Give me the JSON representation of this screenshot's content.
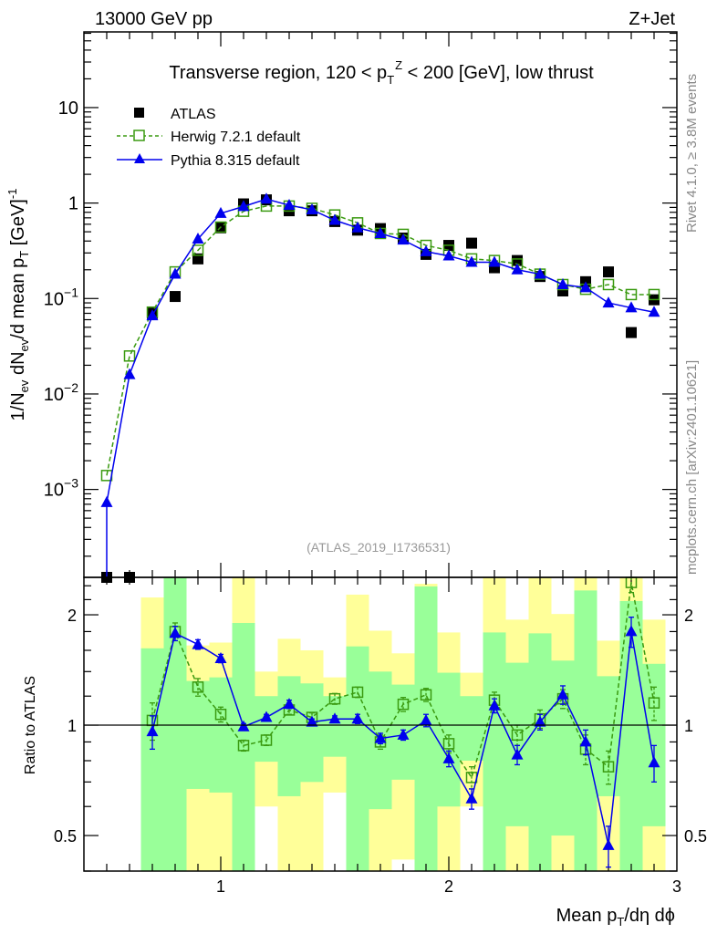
{
  "header": {
    "left": "13000 GeV pp",
    "right": "Z+Jet"
  },
  "side_labels": {
    "rivet": "Rivet 4.1.0, ≥ 3.8M events",
    "mcplots": "mcplots.cern.ch [arXiv:2401.10621]"
  },
  "watermark": "(ATLAS_2019_I1736531)",
  "chart_data": [
    {
      "type": "scatter",
      "title": {
        "pre": "Transverse region, 120 < p",
        "sub": "T",
        "sup": "Z",
        "post": " < 200 [GeV], low thrust"
      },
      "xlabel": {
        "pre": "Mean p",
        "sub": "T",
        "post": "/dη dϕ"
      },
      "ylabel": {
        "a": "1/N",
        "a_sub": "ev",
        "b": " dN",
        "b_sub": "ev",
        "c": "/d mean p",
        "c_sub": "T",
        "d": " [GeV]",
        "d_sup": "-1"
      },
      "xlim": [
        0.4,
        3.0
      ],
      "ylim": [
        0.00012,
        62
      ],
      "yscale": "log",
      "xticks": [
        {
          "v": 1,
          "label": "1"
        },
        {
          "v": 2,
          "label": "2"
        },
        {
          "v": 3,
          "label": "3"
        }
      ],
      "yticks": [
        {
          "v": 10,
          "label": "10"
        },
        {
          "v": 1,
          "label": "1"
        },
        {
          "v": 0.1,
          "label": "10",
          "sup": "−1"
        },
        {
          "v": 0.01,
          "label": "10",
          "sup": "−2"
        },
        {
          "v": 0.001,
          "label": "10",
          "sup": "−3"
        }
      ],
      "legend_position": "top-left",
      "x": [
        0.5,
        0.6,
        0.7,
        0.8,
        0.9,
        1.0,
        1.1,
        1.2,
        1.3,
        1.4,
        1.5,
        1.6,
        1.7,
        1.8,
        1.9,
        2.0,
        2.1,
        2.2,
        2.3,
        2.4,
        2.5,
        2.6,
        2.7,
        2.8,
        2.9
      ],
      "series": [
        {
          "name": "ATLAS",
          "color": "#000000",
          "marker": "square-filled",
          "values": [
            0.0001,
            0.0001,
            0.07,
            0.105,
            0.26,
            0.55,
            0.98,
            1.08,
            0.83,
            0.83,
            0.64,
            0.52,
            0.54,
            0.43,
            0.29,
            0.36,
            0.38,
            0.21,
            0.25,
            0.17,
            0.12,
            0.15,
            0.19,
            0.044,
            0.097
          ]
        },
        {
          "name": "Herwig 7.2.1 default",
          "color": "#3a9a10",
          "marker": "square-open",
          "line": "dashed",
          "values": [
            0.0014,
            0.025,
            0.072,
            0.19,
            0.32,
            0.56,
            0.82,
            0.93,
            0.93,
            0.88,
            0.75,
            0.62,
            0.48,
            0.47,
            0.36,
            0.32,
            0.26,
            0.25,
            0.23,
            0.18,
            0.14,
            0.125,
            0.14,
            0.11,
            0.11
          ]
        },
        {
          "name": "Pythia 8.315 default",
          "color": "#0000ee",
          "marker": "triangle-filled",
          "line": "solid",
          "values": [
            0.00073,
            0.016,
            0.066,
            0.18,
            0.42,
            0.78,
            0.92,
            1.1,
            0.95,
            0.85,
            0.66,
            0.55,
            0.48,
            0.41,
            0.31,
            0.28,
            0.24,
            0.24,
            0.2,
            0.18,
            0.14,
            0.13,
            0.09,
            0.08,
            0.072
          ]
        }
      ]
    },
    {
      "type": "scatter",
      "ylabel": "Ratio to ATLAS",
      "yscale": "log",
      "ylim": [
        0.4,
        2.53
      ],
      "yticks": [
        {
          "v": 2,
          "label": "2"
        },
        {
          "v": 1,
          "label": "1"
        },
        {
          "v": 0.5,
          "label": "0.5"
        }
      ],
      "x": [
        0.7,
        0.8,
        0.9,
        1.0,
        1.1,
        1.2,
        1.3,
        1.4,
        1.5,
        1.6,
        1.7,
        1.8,
        1.9,
        2.0,
        2.1,
        2.2,
        2.3,
        2.4,
        2.5,
        2.6,
        2.7,
        2.8,
        2.9
      ],
      "bands": {
        "green_color": "#99ff99",
        "yellow_color": "#ffff99",
        "green": [
          [
            0.3,
            1.62
          ],
          [
            0.3,
            3
          ],
          [
            0.67,
            1.32
          ],
          [
            0.655,
            1.35
          ],
          [
            0.3,
            1.9
          ],
          [
            0.795,
            1.2
          ],
          [
            0.64,
            1.36
          ],
          [
            0.7,
            1.3
          ],
          [
            0.82,
            1.2
          ],
          [
            0.3,
            1.64
          ],
          [
            0.59,
            1.4
          ],
          [
            0.71,
            1.29
          ],
          [
            0.3,
            2.39
          ],
          [
            0.6,
            1.39
          ],
          [
            0.8,
            1.2
          ],
          [
            0.3,
            1.79
          ],
          [
            0.53,
            1.48
          ],
          [
            0.3,
            1.78
          ],
          [
            0.5,
            1.5
          ],
          [
            0.3,
            2.33
          ],
          [
            0.64,
            1.36
          ],
          [
            0.3,
            2.18
          ],
          [
            0.53,
            1.47
          ]
        ],
        "yellow": [
          [
            0.3,
            2.23
          ],
          [
            0.3,
            3
          ],
          [
            0.3,
            1.65
          ],
          [
            0.3,
            1.68
          ],
          [
            0.3,
            3
          ],
          [
            0.6,
            1.4
          ],
          [
            0.3,
            1.72
          ],
          [
            0.3,
            1.6
          ],
          [
            0.655,
            1.35
          ],
          [
            0.3,
            2.27
          ],
          [
            0.3,
            1.81
          ],
          [
            0.43,
            1.57
          ],
          [
            0.3,
            2.43
          ],
          [
            0.3,
            1.79
          ],
          [
            0.6,
            1.39
          ],
          [
            0.3,
            3
          ],
          [
            0.3,
            1.94
          ],
          [
            0.3,
            3
          ],
          [
            0.3,
            2.01
          ],
          [
            0.3,
            3
          ],
          [
            0.3,
            1.7
          ],
          [
            0.3,
            3
          ],
          [
            0.3,
            1.94
          ]
        ]
      },
      "series": [
        {
          "name": "Herwig 7.2.1 default",
          "color": "#3a9a10",
          "values": [
            1.03,
            1.8,
            1.27,
            1.07,
            0.88,
            0.91,
            1.1,
            1.05,
            1.18,
            1.23,
            0.9,
            1.14,
            1.21,
            0.89,
            0.72,
            1.17,
            0.94,
            1.04,
            1.18,
            0.86,
            0.77,
            2.45,
            1.15
          ],
          "errors": [
            0.12,
            0.1,
            0.07,
            0.05,
            0.03,
            0.03,
            0.03,
            0.03,
            0.04,
            0.04,
            0.04,
            0.05,
            0.05,
            0.05,
            0.05,
            0.06,
            0.06,
            0.06,
            0.07,
            0.08,
            0.08,
            0.15,
            0.12
          ]
        },
        {
          "name": "Pythia 8.315 default",
          "color": "#0000ee",
          "values": [
            0.96,
            1.78,
            1.66,
            1.52,
            0.99,
            1.05,
            1.14,
            1.02,
            1.04,
            1.04,
            0.92,
            0.94,
            1.03,
            0.81,
            0.63,
            1.13,
            0.83,
            1.02,
            1.21,
            0.9,
            0.47,
            1.8,
            0.79
          ],
          "errors": [
            0.1,
            0.08,
            0.05,
            0.04,
            0.02,
            0.02,
            0.03,
            0.02,
            0.02,
            0.03,
            0.03,
            0.03,
            0.04,
            0.04,
            0.04,
            0.05,
            0.05,
            0.05,
            0.07,
            0.07,
            0.06,
            0.17,
            0.09
          ]
        }
      ]
    }
  ]
}
